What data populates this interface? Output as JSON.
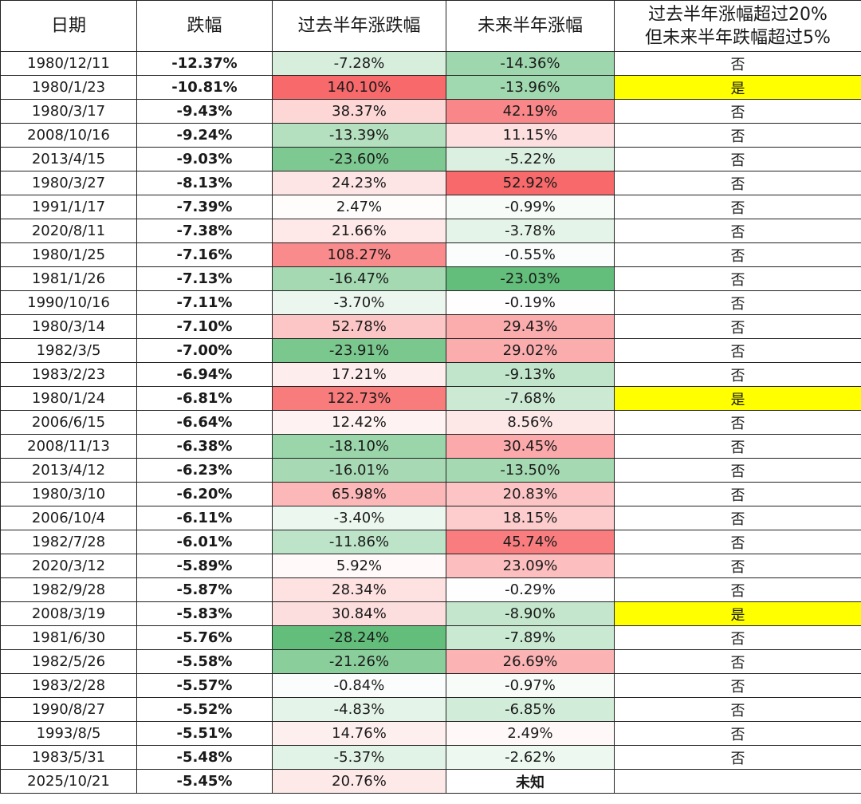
{
  "headers": {
    "date": "日期",
    "drop": "跌幅",
    "past": "过去半年涨跌幅",
    "future": "未来半年涨幅",
    "flag_line1": "过去半年涨幅超过20%",
    "flag_line2": "但未来半年跌幅超过5%"
  },
  "colors": {
    "highlight_yes": "#ffff00",
    "positive_max": "#f8696b",
    "negative_max": "#63be7b",
    "neutral": "#ffffff"
  },
  "rows": [
    {
      "date": "1980/12/11",
      "drop": "-12.37%",
      "past": "-7.28%",
      "future": "-14.36%",
      "flag": "否"
    },
    {
      "date": "1980/1/23",
      "drop": "-10.81%",
      "past": "140.10%",
      "future": "-13.96%",
      "flag": "是"
    },
    {
      "date": "1980/3/17",
      "drop": "-9.43%",
      "past": "38.37%",
      "future": "42.19%",
      "flag": "否"
    },
    {
      "date": "2008/10/16",
      "drop": "-9.24%",
      "past": "-13.39%",
      "future": "11.15%",
      "flag": "否"
    },
    {
      "date": "2013/4/15",
      "drop": "-9.03%",
      "past": "-23.60%",
      "future": "-5.22%",
      "flag": "否"
    },
    {
      "date": "1980/3/27",
      "drop": "-8.13%",
      "past": "24.23%",
      "future": "52.92%",
      "flag": "否"
    },
    {
      "date": "1991/1/17",
      "drop": "-7.39%",
      "past": "2.47%",
      "future": "-0.99%",
      "flag": "否"
    },
    {
      "date": "2020/8/11",
      "drop": "-7.38%",
      "past": "21.66%",
      "future": "-3.78%",
      "flag": "否"
    },
    {
      "date": "1980/1/25",
      "drop": "-7.16%",
      "past": "108.27%",
      "future": "-0.55%",
      "flag": "否"
    },
    {
      "date": "1981/1/26",
      "drop": "-7.13%",
      "past": "-16.47%",
      "future": "-23.03%",
      "flag": "否"
    },
    {
      "date": "1990/10/16",
      "drop": "-7.11%",
      "past": "-3.70%",
      "future": "-0.19%",
      "flag": "否"
    },
    {
      "date": "1980/3/14",
      "drop": "-7.10%",
      "past": "52.78%",
      "future": "29.43%",
      "flag": "否"
    },
    {
      "date": "1982/3/5",
      "drop": "-7.00%",
      "past": "-23.91%",
      "future": "29.02%",
      "flag": "否"
    },
    {
      "date": "1983/2/23",
      "drop": "-6.94%",
      "past": "17.21%",
      "future": "-9.13%",
      "flag": "否"
    },
    {
      "date": "1980/1/24",
      "drop": "-6.81%",
      "past": "122.73%",
      "future": "-7.68%",
      "flag": "是"
    },
    {
      "date": "2006/6/15",
      "drop": "-6.64%",
      "past": "12.42%",
      "future": "8.56%",
      "flag": "否"
    },
    {
      "date": "2008/11/13",
      "drop": "-6.38%",
      "past": "-18.10%",
      "future": "30.45%",
      "flag": "否"
    },
    {
      "date": "2013/4/12",
      "drop": "-6.23%",
      "past": "-16.01%",
      "future": "-13.50%",
      "flag": "否"
    },
    {
      "date": "1980/3/10",
      "drop": "-6.20%",
      "past": "65.98%",
      "future": "20.83%",
      "flag": "否"
    },
    {
      "date": "2006/10/4",
      "drop": "-6.11%",
      "past": "-3.40%",
      "future": "18.15%",
      "flag": "否"
    },
    {
      "date": "1982/7/28",
      "drop": "-6.01%",
      "past": "-11.86%",
      "future": "45.74%",
      "flag": "否"
    },
    {
      "date": "2020/3/12",
      "drop": "-5.89%",
      "past": "5.92%",
      "future": "23.09%",
      "flag": "否"
    },
    {
      "date": "1982/9/28",
      "drop": "-5.87%",
      "past": "28.34%",
      "future": "-0.29%",
      "flag": "否"
    },
    {
      "date": "2008/3/19",
      "drop": "-5.83%",
      "past": "30.84%",
      "future": "-8.90%",
      "flag": "是"
    },
    {
      "date": "1981/6/30",
      "drop": "-5.76%",
      "past": "-28.24%",
      "future": "-7.89%",
      "flag": "否"
    },
    {
      "date": "1982/5/26",
      "drop": "-5.58%",
      "past": "-21.26%",
      "future": "26.69%",
      "flag": "否"
    },
    {
      "date": "1983/2/28",
      "drop": "-5.57%",
      "past": "-0.84%",
      "future": "-0.97%",
      "flag": "否"
    },
    {
      "date": "1990/8/27",
      "drop": "-5.52%",
      "past": "-4.83%",
      "future": "-6.85%",
      "flag": "否"
    },
    {
      "date": "1993/8/5",
      "drop": "-5.51%",
      "past": "14.76%",
      "future": "2.49%",
      "flag": "否"
    },
    {
      "date": "1983/5/31",
      "drop": "-5.48%",
      "past": "-5.37%",
      "future": "-2.62%",
      "flag": "否"
    },
    {
      "date": "2025/10/21",
      "drop": "-5.45%",
      "past": "20.76%",
      "future": "未知",
      "flag": ""
    }
  ]
}
